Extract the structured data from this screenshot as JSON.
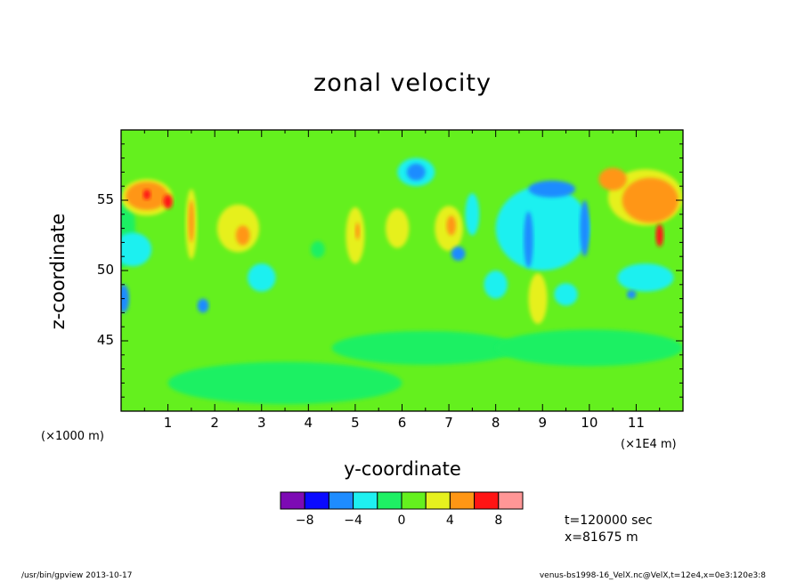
{
  "chart_data": {
    "type": "heatmap",
    "title": "zonal velocity",
    "xlabel": "y-coordinate",
    "ylabel": "z-coordinate",
    "x_unit_left": "(×1000 m)",
    "x_unit_right": "(×1E4 m)",
    "xlim": [
      0,
      12
    ],
    "ylim": [
      40,
      60
    ],
    "x_ticks": [
      "1",
      "2",
      "3",
      "4",
      "5",
      "6",
      "7",
      "8",
      "9",
      "10",
      "11"
    ],
    "y_ticks": [
      "45",
      "50",
      "55"
    ],
    "colorbar": {
      "levels": [
        -10,
        -8,
        -6,
        -4,
        -2,
        0,
        2,
        4,
        6,
        8,
        10
      ],
      "tick_labels": [
        "−8",
        "−4",
        "0",
        "4",
        "8"
      ],
      "tick_values": [
        -8,
        -4,
        0,
        4,
        8
      ],
      "colors": [
        "#7d0ab4",
        "#0a0aff",
        "#1e8cff",
        "#1ef0f0",
        "#1ef064",
        "#64f01e",
        "#e6f01e",
        "#ff9614",
        "#ff1414",
        "#ff9696"
      ]
    },
    "background_level_color": "#64f01e",
    "regions": [
      {
        "cx": 0.0,
        "cy": 53.0,
        "rx": 0.3,
        "ry": 2.8,
        "c": "#1ef064"
      },
      {
        "cx": 0.55,
        "cy": 55.2,
        "rx": 0.55,
        "ry": 1.3,
        "c": "#e6f01e"
      },
      {
        "cx": 0.55,
        "cy": 55.3,
        "rx": 0.45,
        "ry": 1.0,
        "c": "#ff9614"
      },
      {
        "cx": 0.55,
        "cy": 55.4,
        "rx": 0.08,
        "ry": 0.35,
        "c": "#ff1414"
      },
      {
        "cx": 1.0,
        "cy": 54.9,
        "rx": 0.1,
        "ry": 0.5,
        "c": "#ff1414"
      },
      {
        "cx": 0.25,
        "cy": 51.5,
        "rx": 0.4,
        "ry": 1.2,
        "c": "#1ef0f0"
      },
      {
        "cx": 0.05,
        "cy": 48.0,
        "rx": 0.12,
        "ry": 1.0,
        "c": "#1e8cff"
      },
      {
        "cx": 1.5,
        "cy": 53.3,
        "rx": 0.12,
        "ry": 2.5,
        "c": "#e6f01e"
      },
      {
        "cx": 1.5,
        "cy": 53.5,
        "rx": 0.06,
        "ry": 1.5,
        "c": "#ff9614"
      },
      {
        "cx": 1.75,
        "cy": 47.5,
        "rx": 0.12,
        "ry": 0.5,
        "c": "#1e8cff"
      },
      {
        "cx": 2.5,
        "cy": 53.0,
        "rx": 0.45,
        "ry": 1.7,
        "c": "#e6f01e"
      },
      {
        "cx": 2.6,
        "cy": 52.5,
        "rx": 0.15,
        "ry": 0.7,
        "c": "#ff9614"
      },
      {
        "cx": 3.0,
        "cy": 49.5,
        "rx": 0.3,
        "ry": 1.0,
        "c": "#1ef0f0"
      },
      {
        "cx": 4.2,
        "cy": 51.5,
        "rx": 0.15,
        "ry": 0.6,
        "c": "#1ef064"
      },
      {
        "cx": 5.0,
        "cy": 52.5,
        "rx": 0.2,
        "ry": 2.0,
        "c": "#e6f01e"
      },
      {
        "cx": 5.05,
        "cy": 52.8,
        "rx": 0.05,
        "ry": 0.6,
        "c": "#ff9614"
      },
      {
        "cx": 5.9,
        "cy": 53.0,
        "rx": 0.25,
        "ry": 1.4,
        "c": "#e6f01e"
      },
      {
        "cx": 6.3,
        "cy": 57.0,
        "rx": 0.4,
        "ry": 1.0,
        "c": "#1ef0f0"
      },
      {
        "cx": 6.3,
        "cy": 57.0,
        "rx": 0.2,
        "ry": 0.6,
        "c": "#1e8cff"
      },
      {
        "cx": 7.0,
        "cy": 53.0,
        "rx": 0.3,
        "ry": 1.6,
        "c": "#e6f01e"
      },
      {
        "cx": 7.05,
        "cy": 53.2,
        "rx": 0.1,
        "ry": 0.7,
        "c": "#ff9614"
      },
      {
        "cx": 7.2,
        "cy": 51.2,
        "rx": 0.15,
        "ry": 0.5,
        "c": "#1e8cff"
      },
      {
        "cx": 7.5,
        "cy": 54.0,
        "rx": 0.15,
        "ry": 1.5,
        "c": "#1ef0f0"
      },
      {
        "cx": 9.0,
        "cy": 53.0,
        "rx": 1.0,
        "ry": 3.0,
        "c": "#1ef0f0"
      },
      {
        "cx": 9.2,
        "cy": 55.8,
        "rx": 0.5,
        "ry": 0.6,
        "c": "#1e8cff"
      },
      {
        "cx": 8.7,
        "cy": 52.2,
        "rx": 0.1,
        "ry": 2.0,
        "c": "#1e8cff"
      },
      {
        "cx": 9.9,
        "cy": 53.0,
        "rx": 0.1,
        "ry": 2.0,
        "c": "#1e8cff"
      },
      {
        "cx": 8.0,
        "cy": 49.0,
        "rx": 0.25,
        "ry": 1.0,
        "c": "#1ef0f0"
      },
      {
        "cx": 8.9,
        "cy": 48.0,
        "rx": 0.2,
        "ry": 1.8,
        "c": "#e6f01e"
      },
      {
        "cx": 9.5,
        "cy": 48.3,
        "rx": 0.25,
        "ry": 0.8,
        "c": "#1ef0f0"
      },
      {
        "cx": 11.2,
        "cy": 55.2,
        "rx": 0.8,
        "ry": 2.0,
        "c": "#e6f01e"
      },
      {
        "cx": 11.3,
        "cy": 55.0,
        "rx": 0.6,
        "ry": 1.6,
        "c": "#ff9614"
      },
      {
        "cx": 10.5,
        "cy": 56.5,
        "rx": 0.3,
        "ry": 0.8,
        "c": "#ff9614"
      },
      {
        "cx": 11.5,
        "cy": 52.5,
        "rx": 0.08,
        "ry": 0.8,
        "c": "#ff1414"
      },
      {
        "cx": 11.2,
        "cy": 49.5,
        "rx": 0.6,
        "ry": 1.0,
        "c": "#1ef0f0"
      },
      {
        "cx": 10.9,
        "cy": 48.3,
        "rx": 0.1,
        "ry": 0.3,
        "c": "#1e8cff"
      },
      {
        "cx": 3.5,
        "cy": 42.0,
        "rx": 2.5,
        "ry": 1.5,
        "c": "#1ef064"
      },
      {
        "cx": 6.5,
        "cy": 44.5,
        "rx": 2.0,
        "ry": 1.2,
        "c": "#1ef064"
      },
      {
        "cx": 10.0,
        "cy": 44.5,
        "rx": 2.0,
        "ry": 1.3,
        "c": "#1ef064"
      }
    ],
    "info": {
      "time": "t=120000 sec",
      "x_position": "x=81675 m"
    }
  },
  "footer": {
    "left": "/usr/bin/gpview   2013-10-17",
    "right": "venus-bs1998-16_VelX.nc@VelX,t=12e4,x=0e3:120e3:8"
  }
}
